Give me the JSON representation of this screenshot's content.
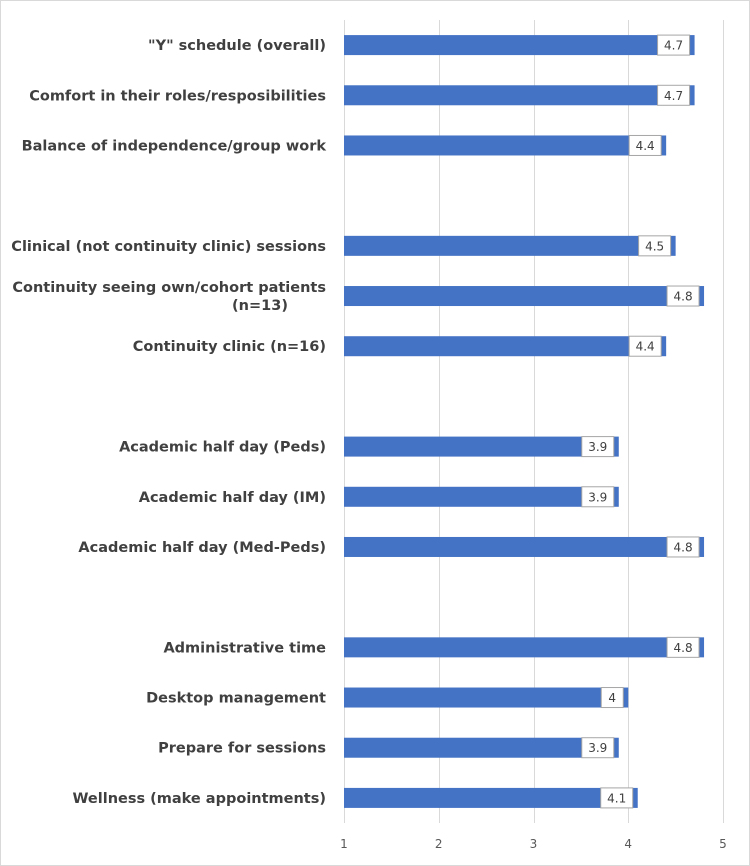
{
  "chart_data": {
    "type": "bar",
    "orientation": "horizontal",
    "title": "",
    "xlabel": "",
    "ylabel": "",
    "xlim": [
      1,
      5
    ],
    "ticks": [
      "1",
      "2",
      "3",
      "4",
      "5"
    ],
    "grid": true,
    "bar_color": "#4472c4",
    "categories": [
      "\"Y\" schedule (overall)",
      "Comfort in their roles/resposibilities",
      "Balance of independence/group work",
      "",
      "Clinical (not continuity clinic) sessions",
      "Continuity seeing own/cohort patients (n=13)",
      "Continuity clinic (n=16)",
      "",
      "Academic half day (Peds)",
      "Academic half day (IM)",
      "Academic half day (Med-Peds)",
      "",
      "Administrative time",
      "Desktop management",
      "Prepare for sessions",
      "Wellness (make appointments)"
    ],
    "values": [
      4.7,
      4.7,
      4.4,
      null,
      4.5,
      4.8,
      4.4,
      null,
      3.9,
      3.9,
      4.8,
      null,
      4.8,
      4.0,
      3.9,
      4.1
    ],
    "data_labels": [
      "4.7",
      "4.7",
      "4.4",
      "",
      "4.5",
      "4.8",
      "4.4",
      "",
      "3.9",
      "3.9",
      "4.8",
      "",
      "4.8",
      "4",
      "3.9",
      "4.1"
    ]
  }
}
